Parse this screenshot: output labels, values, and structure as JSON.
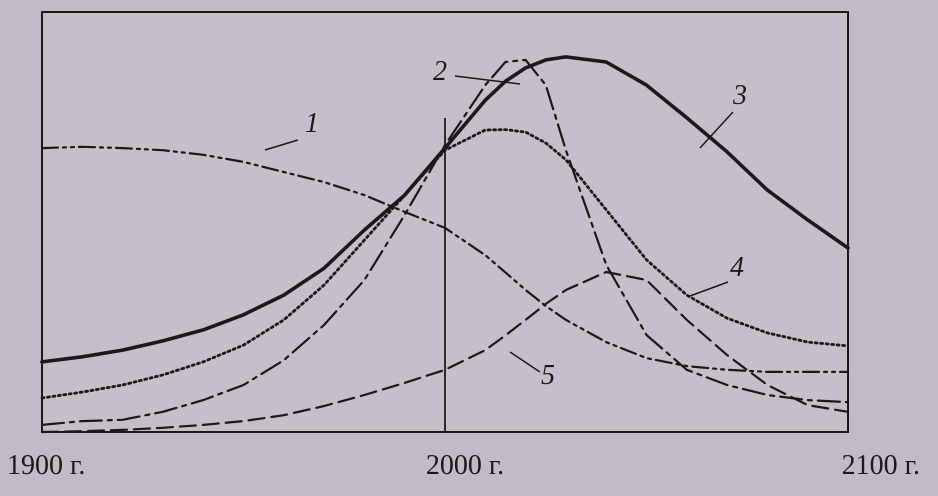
{
  "chart_data": {
    "type": "line",
    "x": [
      1900,
      1910,
      1920,
      1930,
      1940,
      1950,
      1960,
      1970,
      1980,
      1990,
      2000,
      2010,
      2015,
      2020,
      2025,
      2030,
      2040,
      2050,
      2060,
      2070,
      2080,
      2090,
      2100
    ],
    "xlim": [
      1900,
      2100
    ],
    "xticks": [
      {
        "value": 1900,
        "label": "1900 г."
      },
      {
        "value": 2000,
        "label": "2000 г."
      },
      {
        "value": 2100,
        "label": "2100 г."
      }
    ],
    "ylim": [
      0,
      100
    ],
    "series": [
      {
        "name": "1",
        "color": "#1a1a1a",
        "line_style": "dash-dot-dot",
        "values": [
          67.6,
          67.9,
          67.6,
          67.1,
          66,
          64.3,
          61.9,
          59.5,
          56.4,
          52.4,
          48.6,
          42.1,
          38,
          33.8,
          30,
          26.7,
          21.4,
          17.6,
          15.7,
          14.8,
          14.3,
          14.3,
          14.3
        ]
      },
      {
        "name": "2",
        "color": "#1a1a1a",
        "line_style": "dash-dot",
        "values": [
          1.7,
          2.6,
          2.9,
          4.8,
          7.6,
          11.2,
          17.1,
          25.5,
          36.2,
          51.7,
          68.3,
          82.6,
          88.1,
          88.6,
          82.6,
          67.1,
          39.8,
          23.1,
          14.8,
          11.2,
          8.8,
          7.6,
          7.1
        ]
      },
      {
        "name": "3",
        "color": "#1a1a1a",
        "line_style": "solid",
        "values": [
          16.7,
          17.9,
          19.5,
          21.7,
          24.3,
          27.9,
          32.6,
          39,
          48.1,
          56.4,
          67.6,
          79,
          83.5,
          86.7,
          88.6,
          89.3,
          88.1,
          82.6,
          74.8,
          66.7,
          57.6,
          50.5,
          43.8
        ]
      },
      {
        "name": "4",
        "color": "#1a1a1a",
        "line_style": "dotted",
        "values": [
          8.1,
          9.5,
          11.2,
          13.6,
          16.7,
          20.7,
          26.7,
          35,
          45.7,
          56.4,
          67.1,
          71.9,
          72,
          71.4,
          68.8,
          64.8,
          52.9,
          41,
          32.6,
          27.1,
          23.6,
          21.4,
          20.5
        ]
      },
      {
        "name": "5",
        "color": "#1a1a1a",
        "line_style": "dashed",
        "values": [
          0,
          0.2,
          0.5,
          1,
          1.7,
          2.6,
          4,
          6.2,
          8.8,
          11.7,
          14.8,
          19.5,
          23,
          26.7,
          30.5,
          33.8,
          38.1,
          36.2,
          26.7,
          18.3,
          11.2,
          6.4,
          4.8
        ]
      }
    ]
  }
}
